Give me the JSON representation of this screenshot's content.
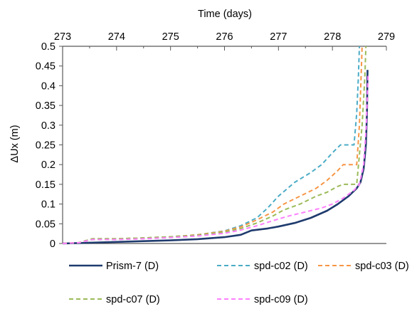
{
  "chart_data": {
    "type": "line",
    "title": "",
    "xlabel": "Time (days)",
    "ylabel": "ΔUx (m)",
    "xaxis_position": "top",
    "xlim": [
      273,
      279
    ],
    "ylim": [
      0,
      0.5
    ],
    "x_ticks": [
      "273",
      "274",
      "275",
      "276",
      "277",
      "278",
      "279"
    ],
    "y_ticks": [
      "0",
      "0.05",
      "0.1",
      "0.15",
      "0.2",
      "0.25",
      "0.3",
      "0.35",
      "0.4",
      "0.45",
      "0.5"
    ],
    "grid": false,
    "legend_position": "bottom",
    "series": [
      {
        "name": "Prism-7 (D)",
        "color": "#1f3b6e",
        "dash": "solid",
        "points": [
          [
            273.0,
            0.0
          ],
          [
            273.5,
            0.002
          ],
          [
            274.0,
            0.004
          ],
          [
            274.5,
            0.006
          ],
          [
            275.0,
            0.008
          ],
          [
            275.5,
            0.011
          ],
          [
            276.0,
            0.016
          ],
          [
            276.3,
            0.022
          ],
          [
            276.5,
            0.033
          ],
          [
            276.8,
            0.038
          ],
          [
            277.0,
            0.043
          ],
          [
            277.3,
            0.052
          ],
          [
            277.6,
            0.065
          ],
          [
            277.9,
            0.083
          ],
          [
            278.1,
            0.1
          ],
          [
            278.3,
            0.12
          ],
          [
            278.45,
            0.14
          ],
          [
            278.52,
            0.155
          ],
          [
            278.58,
            0.19
          ],
          [
            278.62,
            0.25
          ],
          [
            278.64,
            0.33
          ],
          [
            278.65,
            0.44
          ]
        ]
      },
      {
        "name": "spd-c02 (D)",
        "color": "#4bacc6",
        "dash": "dashed",
        "points": [
          [
            273.0,
            0.0
          ],
          [
            273.3,
            0.002
          ],
          [
            273.55,
            0.012
          ],
          [
            274.0,
            0.012
          ],
          [
            274.5,
            0.014
          ],
          [
            275.0,
            0.017
          ],
          [
            275.5,
            0.022
          ],
          [
            276.0,
            0.032
          ],
          [
            276.3,
            0.045
          ],
          [
            276.6,
            0.065
          ],
          [
            276.8,
            0.09
          ],
          [
            277.0,
            0.12
          ],
          [
            277.3,
            0.155
          ],
          [
            277.6,
            0.18
          ],
          [
            277.8,
            0.2
          ],
          [
            278.0,
            0.23
          ],
          [
            278.15,
            0.25
          ],
          [
            278.4,
            0.25
          ],
          [
            278.45,
            0.33
          ],
          [
            278.48,
            0.42
          ],
          [
            278.5,
            0.5
          ]
        ]
      },
      {
        "name": "spd-c03 (D)",
        "color": "#f79646",
        "dash": "dashed",
        "points": [
          [
            273.0,
            0.0
          ],
          [
            273.3,
            0.002
          ],
          [
            273.55,
            0.012
          ],
          [
            274.0,
            0.012
          ],
          [
            274.5,
            0.014
          ],
          [
            275.0,
            0.017
          ],
          [
            275.5,
            0.022
          ],
          [
            276.0,
            0.031
          ],
          [
            276.3,
            0.042
          ],
          [
            276.6,
            0.06
          ],
          [
            276.9,
            0.08
          ],
          [
            277.1,
            0.1
          ],
          [
            277.4,
            0.12
          ],
          [
            277.7,
            0.14
          ],
          [
            277.9,
            0.16
          ],
          [
            278.1,
            0.185
          ],
          [
            278.2,
            0.2
          ],
          [
            278.45,
            0.2
          ],
          [
            278.5,
            0.3
          ],
          [
            278.53,
            0.42
          ],
          [
            278.55,
            0.5
          ]
        ]
      },
      {
        "name": "spd-c07 (D)",
        "color": "#9bbb59",
        "dash": "dashed",
        "points": [
          [
            273.0,
            0.0
          ],
          [
            273.3,
            0.002
          ],
          [
            273.55,
            0.012
          ],
          [
            274.0,
            0.012
          ],
          [
            274.5,
            0.014
          ],
          [
            275.0,
            0.017
          ],
          [
            275.5,
            0.021
          ],
          [
            276.0,
            0.029
          ],
          [
            276.3,
            0.038
          ],
          [
            276.6,
            0.052
          ],
          [
            276.9,
            0.07
          ],
          [
            277.1,
            0.085
          ],
          [
            277.4,
            0.1
          ],
          [
            277.7,
            0.12
          ],
          [
            277.9,
            0.13
          ],
          [
            278.1,
            0.145
          ],
          [
            278.2,
            0.15
          ],
          [
            278.45,
            0.15
          ],
          [
            278.55,
            0.3
          ],
          [
            278.6,
            0.42
          ],
          [
            278.62,
            0.5
          ]
        ]
      },
      {
        "name": "spd-c09 (D)",
        "color": "#ff80ff",
        "dash": "dashed",
        "points": [
          [
            273.0,
            0.0
          ],
          [
            273.3,
            0.002
          ],
          [
            273.55,
            0.01
          ],
          [
            274.0,
            0.01
          ],
          [
            274.5,
            0.012
          ],
          [
            275.0,
            0.015
          ],
          [
            275.5,
            0.019
          ],
          [
            276.0,
            0.026
          ],
          [
            276.3,
            0.034
          ],
          [
            276.6,
            0.045
          ],
          [
            276.9,
            0.058
          ],
          [
            277.2,
            0.07
          ],
          [
            277.5,
            0.08
          ],
          [
            277.8,
            0.09
          ],
          [
            278.0,
            0.1
          ],
          [
            278.2,
            0.115
          ],
          [
            278.4,
            0.135
          ],
          [
            278.5,
            0.15
          ],
          [
            278.58,
            0.2
          ],
          [
            278.63,
            0.3
          ],
          [
            278.66,
            0.43
          ]
        ]
      }
    ]
  }
}
